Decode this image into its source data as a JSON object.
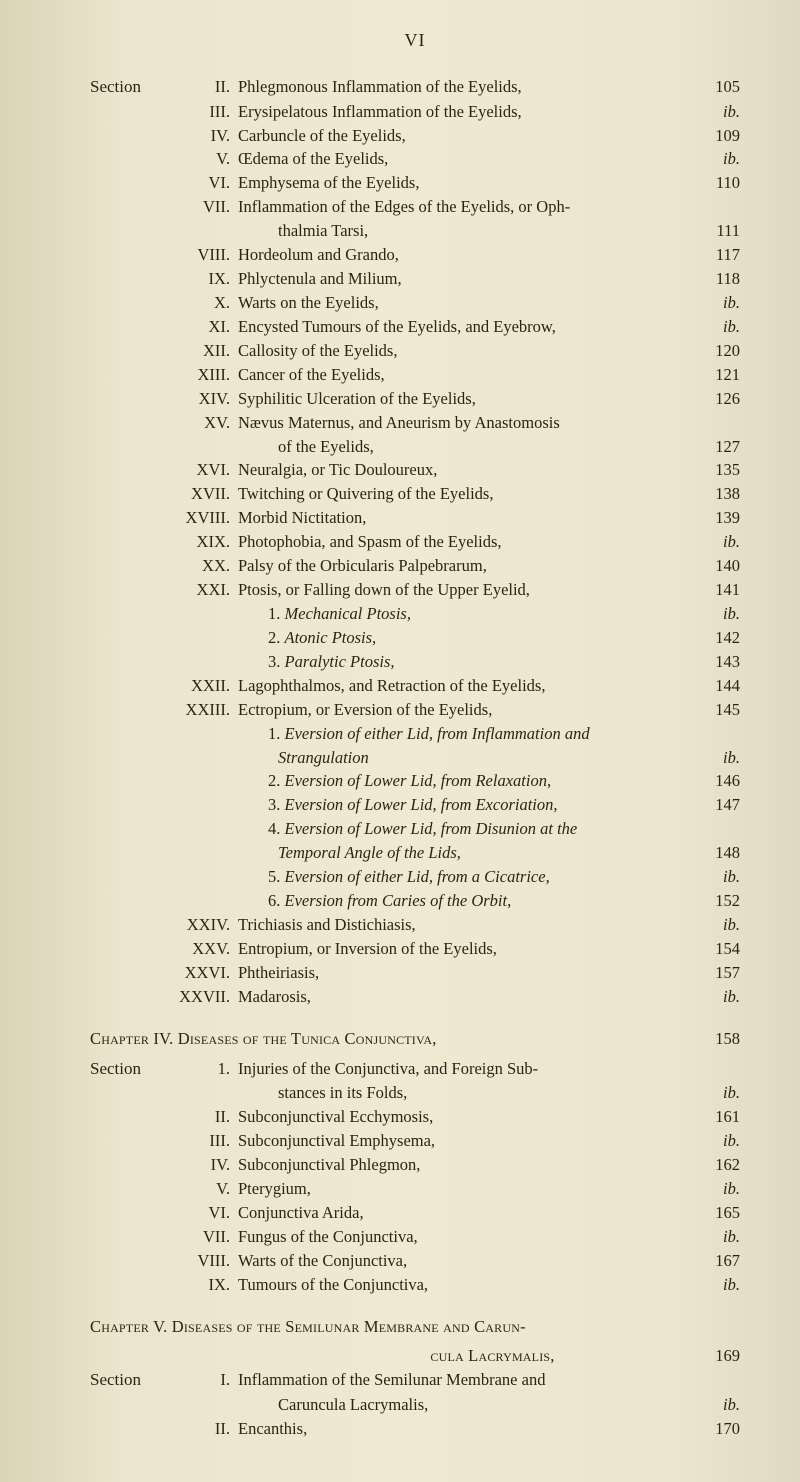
{
  "page_number": "VI",
  "section_label": "Section",
  "block1": [
    {
      "r": "II.",
      "t": "Phlegmonous Inflammation of the Eyelids,",
      "p": "105"
    },
    {
      "r": "III.",
      "t": "Erysipelatous Inflammation of the Eyelids,",
      "p": "ib.",
      "ip": true
    },
    {
      "r": "IV.",
      "t": "Carbuncle of the Eyelids,",
      "p": "109"
    },
    {
      "r": "V.",
      "t": "Œdema of the Eyelids,",
      "p": "ib.",
      "ip": true
    },
    {
      "r": "VI.",
      "t": "Emphysema of the Eyelids,",
      "p": "110"
    },
    {
      "r": "VII.",
      "t": "Inflammation of the Edges of the Eyelids, or Oph-",
      "p": ""
    },
    {
      "r": "",
      "t": "thalmia Tarsi,",
      "p": "111",
      "indent": 2
    },
    {
      "r": "VIII.",
      "t": "Hordeolum and Grando,",
      "p": "117"
    },
    {
      "r": "IX.",
      "t": "Phlyctenula and Milium,",
      "p": "118"
    },
    {
      "r": "X.",
      "t": "Warts on the Eyelids,",
      "p": "ib.",
      "ip": true
    },
    {
      "r": "XI.",
      "t": "Encysted Tumours of the Eyelids, and Eyebrow,",
      "p": "ib.",
      "ip": true
    },
    {
      "r": "XII.",
      "t": "Callosity of the Eyelids,",
      "p": "120"
    },
    {
      "r": "XIII.",
      "t": "Cancer of the Eyelids,",
      "p": "121"
    },
    {
      "r": "XIV.",
      "t": "Syphilitic Ulceration of the Eyelids,",
      "p": "126"
    },
    {
      "r": "XV.",
      "t": "Nævus Maternus, and Aneurism by Anastomosis",
      "p": ""
    },
    {
      "r": "",
      "t": "of the Eyelids,",
      "p": "127",
      "indent": 2
    },
    {
      "r": "XVI.",
      "t": "Neuralgia, or Tic Douloureux,",
      "p": "135"
    },
    {
      "r": "XVII.",
      "t": "Twitching or Quivering of the Eyelids,",
      "p": "138"
    },
    {
      "r": "XVIII.",
      "t": "Morbid Nictitation,",
      "p": "139"
    },
    {
      "r": "XIX.",
      "t": "Photophobia, and Spasm of the Eyelids,",
      "p": "ib.",
      "ip": true
    },
    {
      "r": "XX.",
      "t": "Palsy of the Orbicularis Palpebrarum,",
      "p": "140"
    },
    {
      "r": "XXI.",
      "t": "Ptosis, or Falling down of the Upper Eyelid,",
      "p": "141"
    },
    {
      "r": "",
      "t": "1. Mechanical Ptosis,",
      "p": "ib.",
      "ip": true,
      "indent": 1,
      "italic_from": 3
    },
    {
      "r": "",
      "t": "2. Atonic Ptosis,",
      "p": "142",
      "indent": 1,
      "italic_from": 3
    },
    {
      "r": "",
      "t": "3. Paralytic Ptosis,",
      "p": "143",
      "indent": 1,
      "italic_from": 3
    },
    {
      "r": "XXII.",
      "t": "Lagophthalmos, and Retraction of the Eyelids,",
      "p": "144"
    },
    {
      "r": "XXIII.",
      "t": "Ectropium, or Eversion of the Eyelids,",
      "p": "145"
    },
    {
      "r": "",
      "t": "1. Eversion of either Lid, from Inflammation and",
      "p": "",
      "indent": 1,
      "italic_from": 3
    },
    {
      "r": "",
      "t": "Strangulation",
      "p": "ib.",
      "ip": true,
      "indent": 2,
      "italic_all": true
    },
    {
      "r": "",
      "t": "2. Eversion of Lower Lid, from Relaxation,",
      "p": "146",
      "indent": 1,
      "italic_from": 3
    },
    {
      "r": "",
      "t": "3. Eversion of Lower Lid, from Excoriation,",
      "p": "147",
      "indent": 1,
      "italic_from": 3
    },
    {
      "r": "",
      "t": "4. Eversion of Lower Lid, from Disunion at the",
      "p": "",
      "indent": 1,
      "italic_from": 3
    },
    {
      "r": "",
      "t": "Temporal Angle of the Lids,",
      "p": "148",
      "indent": 2,
      "italic_all": true
    },
    {
      "r": "",
      "t": "5. Eversion of either Lid, from a Cicatrice,",
      "p": "ib.",
      "ip": true,
      "indent": 1,
      "italic_from": 3
    },
    {
      "r": "",
      "t": "6. Eversion from Caries of the Orbit,",
      "p": "152",
      "indent": 1,
      "italic_from": 3
    },
    {
      "r": "XXIV.",
      "t": "Trichiasis and Distichiasis,",
      "p": "ib.",
      "ip": true
    },
    {
      "r": "XXV.",
      "t": "Entropium, or Inversion of the Eyelids,",
      "p": "154"
    },
    {
      "r": "XXVI.",
      "t": "Phtheiriasis,",
      "p": "157"
    },
    {
      "r": "XXVII.",
      "t": "Madarosis,",
      "p": "ib.",
      "ip": true
    }
  ],
  "chapter4": {
    "label": "Chapter IV. ",
    "title": "Diseases of the Tunica Conjunctiva,",
    "page": "158"
  },
  "block2": [
    {
      "r": "1.",
      "t": "Injuries of the Conjunctiva, and Foreign Sub-",
      "p": ""
    },
    {
      "r": "",
      "t": "stances in its Folds,",
      "p": "ib.",
      "ip": true,
      "indent": 2
    },
    {
      "r": "II.",
      "t": "Subconjunctival Ecchymosis,",
      "p": "161"
    },
    {
      "r": "III.",
      "t": "Subconjunctival Emphysema,",
      "p": "ib.",
      "ip": true
    },
    {
      "r": "IV.",
      "t": "Subconjunctival Phlegmon,",
      "p": "162"
    },
    {
      "r": "V.",
      "t": "Pterygium,",
      "p": "ib.",
      "ip": true
    },
    {
      "r": "VI.",
      "t": "Conjunctiva Arida,",
      "p": "165"
    },
    {
      "r": "VII.",
      "t": "Fungus of the Conjunctiva,",
      "p": "ib.",
      "ip": true
    },
    {
      "r": "VIII.",
      "t": "Warts of the Conjunctiva,",
      "p": "167"
    },
    {
      "r": "IX.",
      "t": "Tumours of the Conjunctiva,",
      "p": "ib.",
      "ip": true
    }
  ],
  "chapter5": {
    "label": "Chapter V. ",
    "title_l1": "Diseases of the Semilunar Membrane and Carun-",
    "title_l2": "cula Lacrymalis,",
    "page": "169"
  },
  "block3": [
    {
      "r": "I.",
      "t": "Inflammation of the Semilunar Membrane and",
      "p": ""
    },
    {
      "r": "",
      "t": "Caruncula Lacrymalis,",
      "p": "ib.",
      "ip": true,
      "indent": 2
    },
    {
      "r": "II.",
      "t": "Encanthis,",
      "p": "170"
    }
  ]
}
